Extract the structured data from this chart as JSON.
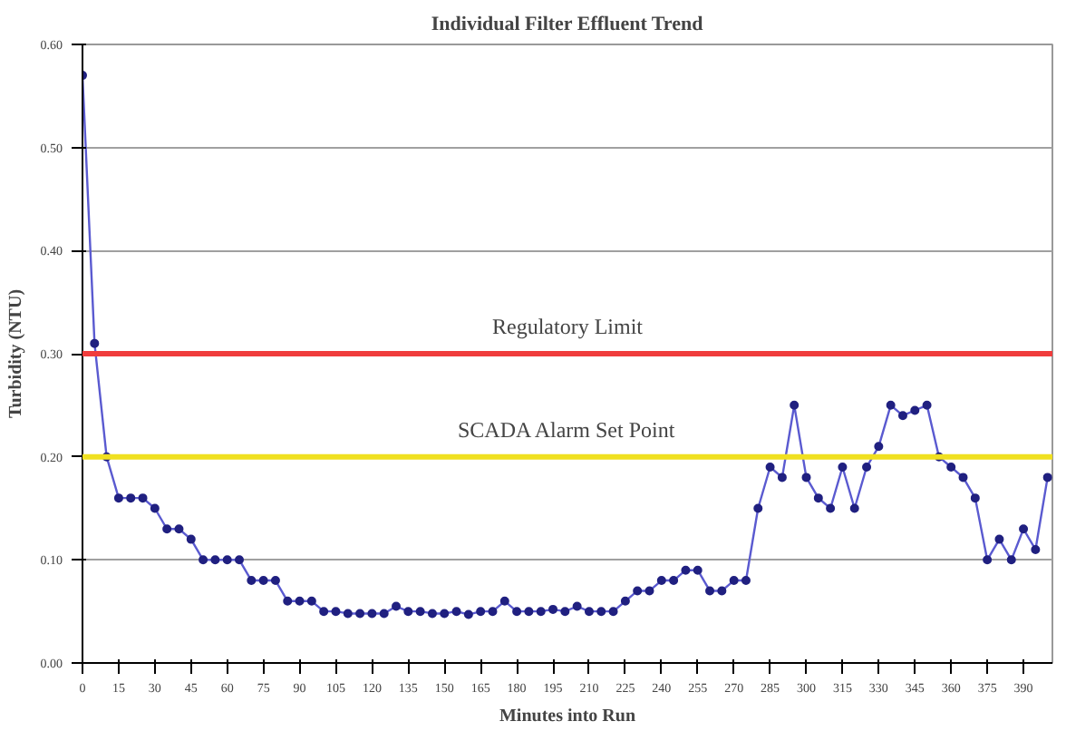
{
  "chart_data": {
    "type": "line",
    "title": "Individual Filter Effluent Trend",
    "xlabel": "Minutes into Run",
    "ylabel": "Turbidity (NTU)",
    "x": [
      0,
      5,
      10,
      15,
      20,
      25,
      30,
      35,
      40,
      45,
      50,
      55,
      60,
      65,
      70,
      75,
      80,
      85,
      90,
      95,
      100,
      105,
      110,
      115,
      120,
      125,
      130,
      135,
      140,
      145,
      150,
      155,
      160,
      165,
      170,
      175,
      180,
      185,
      190,
      195,
      200,
      205,
      210,
      215,
      220,
      225,
      230,
      235,
      240,
      245,
      250,
      255,
      260,
      265,
      270,
      275,
      280,
      285,
      290,
      295,
      300,
      305,
      310,
      315,
      320,
      325,
      330,
      335,
      340,
      345,
      350,
      355,
      360,
      365,
      370,
      375,
      380,
      385,
      390,
      395,
      400
    ],
    "series": [
      {
        "color": "#5a5ad0",
        "values": [
          0.57,
          0.31,
          0.2,
          0.16,
          0.16,
          0.16,
          0.15,
          0.13,
          0.13,
          0.12,
          0.1,
          0.1,
          0.1,
          0.1,
          0.08,
          0.08,
          0.08,
          0.06,
          0.06,
          0.06,
          0.05,
          0.05,
          0.048,
          0.048,
          0.048,
          0.048,
          0.055,
          0.05,
          0.05,
          0.048,
          0.048,
          0.05,
          0.047,
          0.05,
          0.05,
          0.06,
          0.05,
          0.05,
          0.05,
          0.052,
          0.05,
          0.055,
          0.05,
          0.05,
          0.05,
          0.06,
          0.07,
          0.07,
          0.08,
          0.08,
          0.09,
          0.09,
          0.07,
          0.07,
          0.08,
          0.08,
          0.15,
          0.19,
          0.18,
          0.25,
          0.18,
          0.16,
          0.15,
          0.19,
          0.15,
          0.19,
          0.21,
          0.25,
          0.24,
          0.245,
          0.25,
          0.2,
          0.19,
          0.18,
          0.16,
          0.1,
          0.12,
          0.1,
          0.13,
          0.11,
          0.18
        ]
      }
    ],
    "marker": "circle",
    "xlim": [
      0,
      402
    ],
    "xticks": [
      0,
      15,
      30,
      45,
      60,
      75,
      90,
      105,
      120,
      135,
      150,
      165,
      180,
      195,
      210,
      225,
      240,
      255,
      270,
      285,
      300,
      315,
      330,
      345,
      360,
      375,
      390
    ],
    "ylim": [
      0,
      0.6
    ],
    "yticks": [
      {
        "value": 0,
        "label": "0.00"
      },
      {
        "value": 0.1,
        "label": "0.10"
      },
      {
        "value": 0.2,
        "label": "0.20"
      },
      {
        "value": 0.3,
        "label": "0.30"
      },
      {
        "value": 0.4,
        "label": "0.40"
      },
      {
        "value": 0.5,
        "label": "0.50"
      },
      {
        "value": 0.6,
        "label": "0.60"
      }
    ],
    "grid": "y",
    "ref_lines": [
      {
        "axis": "y",
        "value": 0.3,
        "label": "Regulatory Limit",
        "color": "#f03c3c"
      },
      {
        "axis": "y",
        "value": 0.2,
        "label": "SCADA Alarm Set Point",
        "color": "#f0e020"
      }
    ]
  }
}
